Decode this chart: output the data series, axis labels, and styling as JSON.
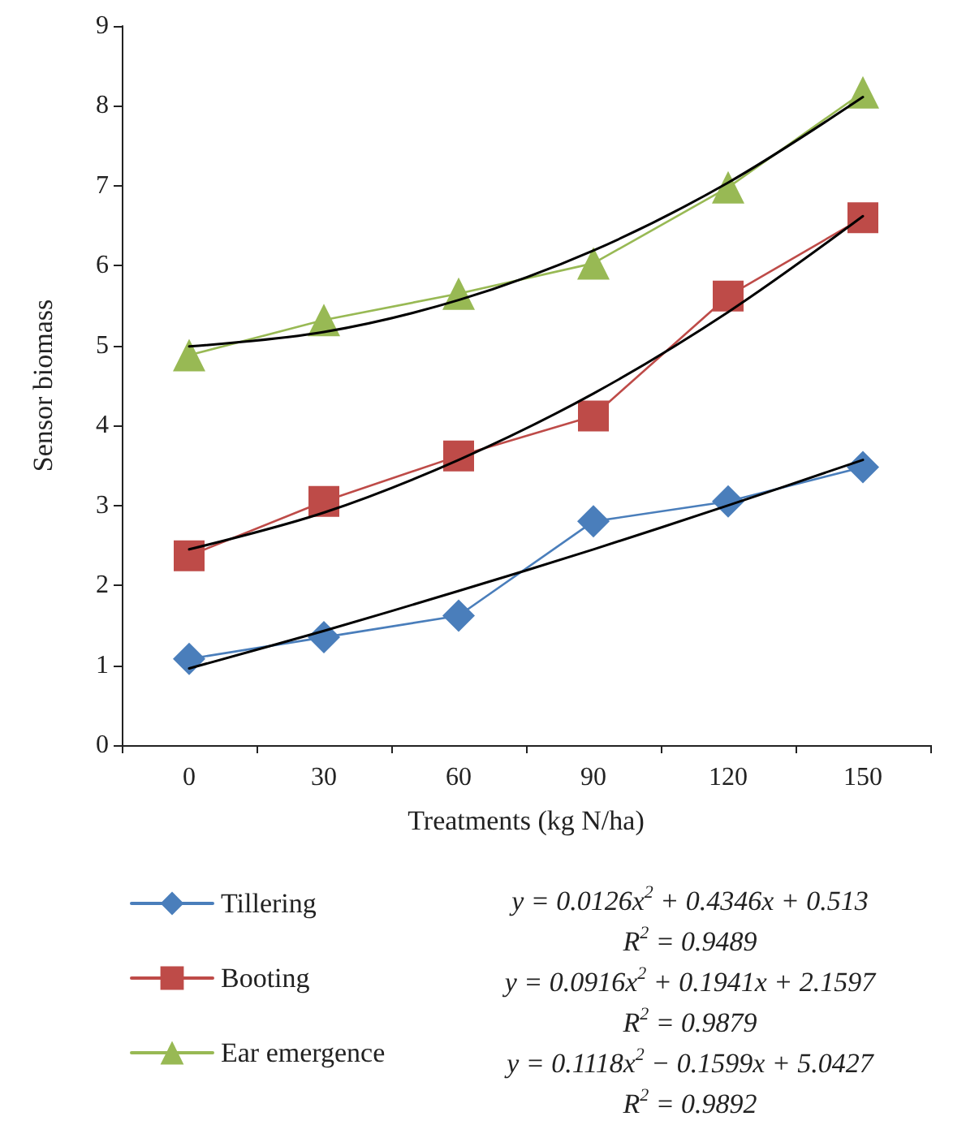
{
  "chart_data": {
    "type": "line",
    "xlabel": "Treatments (kg N/ha)",
    "ylabel": "Sensor biomass",
    "categories": [
      "0",
      "30",
      "60",
      "90",
      "120",
      "150"
    ],
    "series": [
      {
        "name": "Tillering",
        "color": "#4a7ebb",
        "marker": "diamond",
        "values": [
          1.08,
          1.35,
          1.62,
          2.8,
          3.05,
          3.48
        ]
      },
      {
        "name": "Booting",
        "color": "#be4b48",
        "marker": "square",
        "values": [
          2.37,
          3.05,
          3.62,
          4.12,
          5.62,
          6.6
        ]
      },
      {
        "name": "Ear emergence",
        "color": "#98b954",
        "marker": "triangle",
        "values": [
          4.88,
          5.32,
          5.65,
          6.03,
          6.98,
          8.17
        ]
      },
      {
        "color": "#000000",
        "marker": "none",
        "values": [
          0.96,
          1.43,
          1.93,
          2.45,
          3.0,
          3.57
        ]
      },
      {
        "color": "#000000",
        "marker": "none",
        "values": [
          2.45,
          2.91,
          3.57,
          4.4,
          5.42,
          6.62
        ]
      },
      {
        "color": "#000000",
        "marker": "none",
        "values": [
          4.99,
          5.17,
          5.57,
          6.19,
          7.04,
          8.11
        ]
      }
    ],
    "ylim": [
      0,
      9
    ],
    "yticks": [
      0,
      1,
      2,
      3,
      4,
      5,
      6,
      7,
      8,
      9
    ],
    "grid": false,
    "legend": "bottom",
    "line_style": "solid",
    "annotations": [
      "y = 0.0126x$^{2}$ + 0.4346x + 0.513",
      "R$^{2}$ = 0.9489",
      "y = 0.0916x$^{2}$ + 0.1941x + 2.1597",
      "R$^{2}$ = 0.9879",
      "y = 0.1118x$^{2}$ − 0.1599x + 5.0427",
      "R$^{2}$ = 0.9892"
    ]
  }
}
